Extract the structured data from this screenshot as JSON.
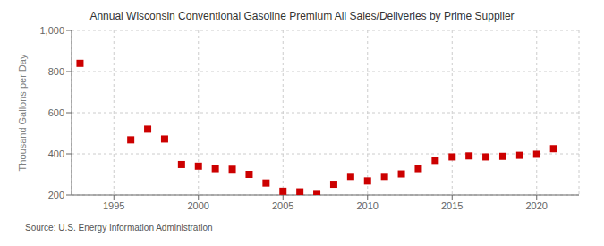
{
  "chart_data": {
    "type": "scatter",
    "title": "Annual Wisconsin Conventional Gasoline Premium All Sales/Deliveries by Prime Supplier",
    "ylabel": "Thousand Gallons per Day",
    "source": "Source: U.S. Energy Information Administration",
    "x": [
      1993,
      1996,
      1997,
      1998,
      1999,
      2000,
      2001,
      2002,
      2003,
      2004,
      2005,
      2006,
      2007,
      2008,
      2009,
      2010,
      2011,
      2012,
      2013,
      2014,
      2015,
      2016,
      2017,
      2018,
      2019,
      2020,
      2021
    ],
    "values": [
      840,
      468,
      520,
      472,
      348,
      340,
      328,
      325,
      300,
      258,
      218,
      215,
      207,
      252,
      290,
      268,
      290,
      302,
      328,
      368,
      385,
      390,
      385,
      388,
      393,
      398,
      425
    ],
    "color": "#cc0000",
    "marker": "square",
    "xlim": [
      1992.5,
      2022.5
    ],
    "xticks": [
      1995,
      2000,
      2005,
      2010,
      2015,
      2020
    ],
    "ylim": [
      200,
      1000
    ],
    "yticks": [
      200,
      400,
      600,
      800,
      {
        "value": 1000,
        "label": "1,000"
      }
    ],
    "grid": true
  }
}
